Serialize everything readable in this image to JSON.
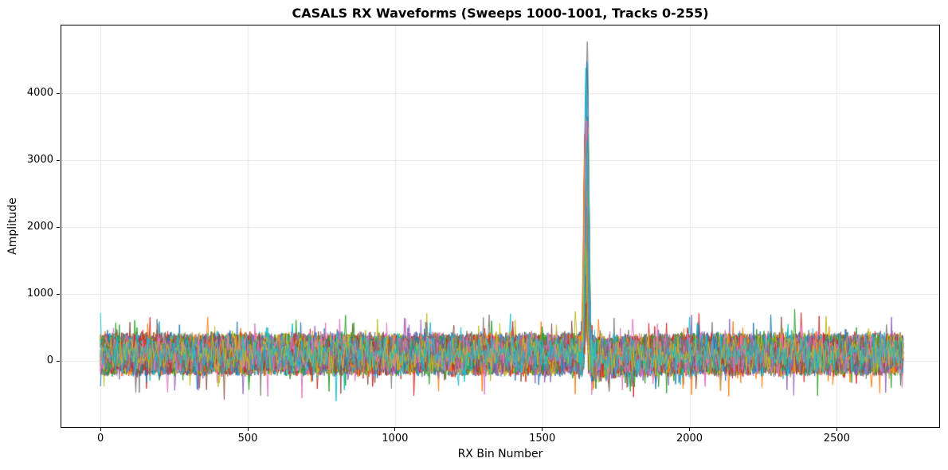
{
  "window": {
    "background": "#ffffff"
  },
  "chart_data": {
    "type": "line",
    "title": "CASALS RX Waveforms (Sweeps 1000-1001, Tracks 0-255)",
    "xlabel": "RX Bin Number",
    "ylabel": "Amplitude",
    "xticks": [
      0,
      500,
      1000,
      1500,
      2000,
      2500
    ],
    "yticks": [
      0,
      1000,
      2000,
      3000,
      4000
    ],
    "xlim": [
      -133,
      2848
    ],
    "ylim": [
      -988,
      5012
    ],
    "grid": true,
    "legend": false,
    "num_traces": 512,
    "sweep_range": [
      1000,
      1001
    ],
    "track_range": [
      0,
      255
    ],
    "bin_range": [
      0,
      2726
    ],
    "series_description": "512 overlaid RX waveform traces (2 sweeps x 256 tracks): zero-centered noise band roughly -300..+500 over all bins, sharp pulse near bin 1650 with peaks from ~800 up to ~4730, mild negative undershoot for bins ~1656-1990 reaching ~-700",
    "noise_band": {
      "center": 100,
      "dense_min": -250,
      "dense_max": 460,
      "outlier_min": -700,
      "outlier_max": 900
    },
    "pulse": {
      "center_bin": 1650,
      "sigma_bins": 5,
      "peak_amplitude_max": 4730,
      "peak_amplitude_min": 800,
      "tallest_trace_color": "#7f7f7f",
      "second_tallest_color": "#1f77b4",
      "third_tallest_color": "#17becf"
    },
    "post_pulse_undershoot": {
      "bin_start": 1656,
      "bin_end": 1990,
      "min_amplitude": -700
    },
    "palette": [
      "#1f77b4",
      "#ff7f0e",
      "#2ca02c",
      "#d62728",
      "#9467bd",
      "#8c564b",
      "#e377c2",
      "#7f7f7f",
      "#bcbd22",
      "#17becf"
    ],
    "style": {
      "grid_color": "#e7e7e7",
      "spine_color": "#000000",
      "text_color": "#000000",
      "line_width": 1
    },
    "render": {
      "traces_drawn": 110,
      "seed": 42,
      "bin_step": 4
    }
  }
}
